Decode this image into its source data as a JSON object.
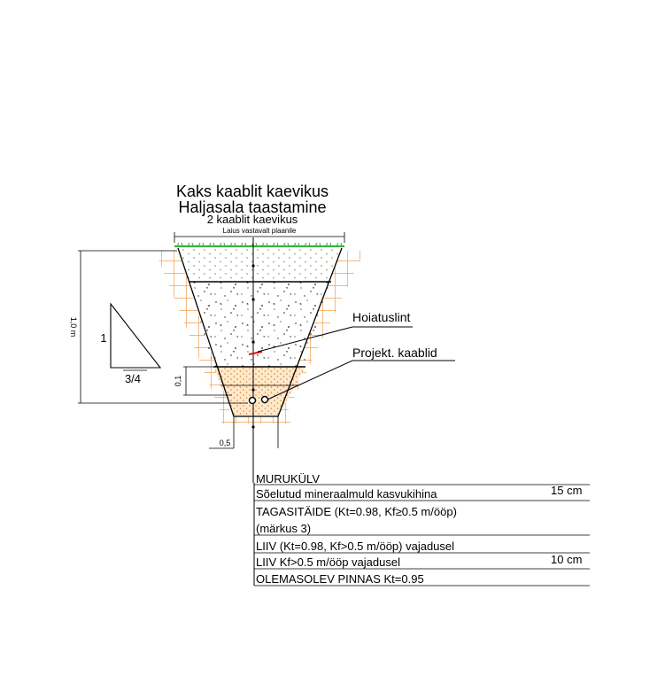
{
  "title_line1": "Kaks kaablit kaevikus",
  "title_line2": "Haljasala taastamine",
  "subtitle": "2 kaablit kaevikus",
  "width_note": "Laius vastavalt plaanile",
  "depth_dim": "1,0 m",
  "slope": {
    "vertical": "1",
    "horizontal": "3/4"
  },
  "bedding_dim": "0,1",
  "bottom_dim": "0,5",
  "callouts": {
    "warning_tape": "Hoiatuslint",
    "cables": "Projekt. kaablid"
  },
  "layers": [
    {
      "label": "MURUKÜLV",
      "value": ""
    },
    {
      "label": "Sõelutud mineraalmuld kasvukihina",
      "value": "15 cm"
    },
    {
      "label": "TAGASITÄIDE (Kt=0.98, Kf≥0.5 m/ööp)",
      "value": ""
    },
    {
      "label": "(märkus 3)",
      "value": ""
    },
    {
      "label": "LIIV (Kt=0.98, Kf>0.5 m/ööp) vajadusel",
      "value": ""
    },
    {
      "label": "LIIV Kf>0.5 m/ööp vajadusel",
      "value": "10 cm"
    },
    {
      "label": "OLEMASOLEV PINNAS Kt=0.95",
      "value": ""
    }
  ],
  "colors": {
    "grass": "#3cb43c",
    "topsoil_dots": "#5aa05a",
    "sand": "#f0a050",
    "sand_dots": "#e08020",
    "soil_hatch": "#f0a050",
    "warning_tape": "#e01010"
  }
}
